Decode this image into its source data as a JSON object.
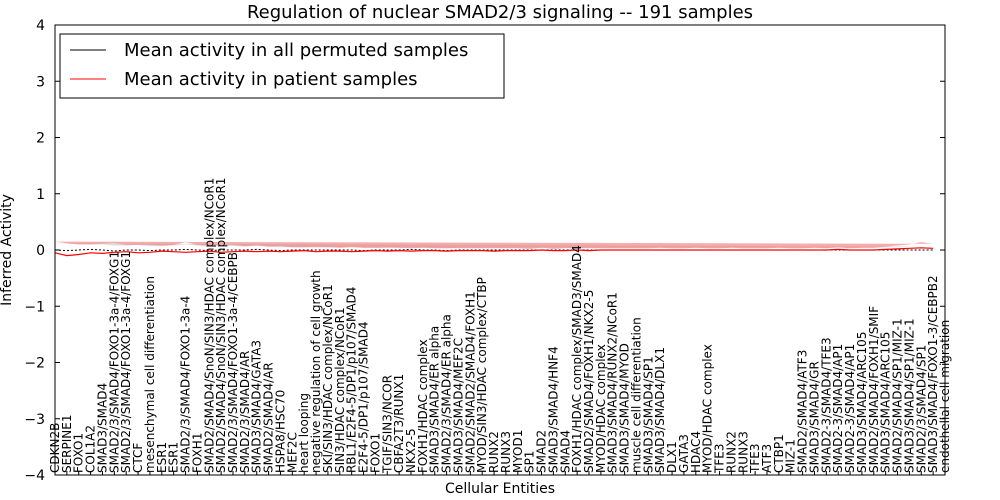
{
  "chart_data": {
    "type": "line",
    "title": "Regulation of nuclear SMAD2/3 signaling -- 191 samples",
    "xlabel": "Cellular Entities",
    "ylabel": "Inferred Activity",
    "ylim": [
      -4,
      4
    ],
    "yticks": [
      "4",
      "3",
      "2",
      "1",
      "0",
      "−1",
      "−2",
      "−3",
      "−4"
    ],
    "ytick_values": [
      4,
      3,
      2,
      1,
      0,
      -1,
      -2,
      -3,
      -4
    ],
    "legend_placement": "top-left",
    "colors": {
      "permuted": "#000000",
      "patient": "#ff0000",
      "band_patient": "#f08080",
      "band_permuted": "#bbbbbb"
    },
    "series": [
      {
        "name": "Mean activity in all permuted samples",
        "color": "#000000"
      },
      {
        "name": "Mean activity in patient samples",
        "color": "#ff0000"
      }
    ],
    "categories": [
      "CDKN2B",
      "SERPINE1",
      "FOXO1",
      "COL1A2",
      "SMAD3/SMAD4",
      "SMAD2/3/SMAD4/FOXO1-3a-4/FOXG1",
      "SMAD2/3/SMAD4/FOXO1-3a-4/FOXG1",
      "CTCF",
      "mesenchymal cell differentiation",
      "ESR1",
      "ESR1",
      "SMAD2/3/SMAD4/FOXO1-3a-4",
      "FOXH1",
      "SMAD2/SMAD4/SnoN/SIN3/HDAC complex/NCoR1",
      "SMAD2/SMAD4/SnoN/SIN3/HDAC complex/NCoR1",
      "SMAD2/3/SMAD4/FOXO1-3a-4/CEBPB",
      "SMAD2/3/SMAD4/AR",
      "SMAD3/SMAD4/GATA3",
      "SMAD2/SMAD4/AR",
      "HSPA8/HSC70",
      "MEF2C",
      "heart looping",
      "negative regulation of cell growth",
      "SKI/SIN3/HDAC complex/NCoR1",
      "SIN3/HDAC complex/NCoR1",
      "RBL1/E2F4-5/DP1/p107/SMAD4",
      "E2F4-5/DP1/p107/SMAD4",
      "FOXO1",
      "TGIF/SIN3/NCOR",
      "CBFA2T3/RUNX1",
      "NKX2-5",
      "FOXH1/HDAC complex",
      "SMAD3/SMAD4/ER alpha",
      "SMAD2/3/SMAD4/ER alpha",
      "SMAD3/SMAD4/MEF2C",
      "SMAD2/SMAD2/SMAD4/FOXH1",
      "MYOD/SIN3/HDAC complex/CTBP",
      "RUNX2",
      "RUNX3",
      "MYOD1",
      "SP1",
      "SMAD2",
      "SMAD3/SMAD4/HNF4",
      "SMAD4",
      "FOXH1/HDAC complex/SMAD3/SMAD4",
      "SMAD2/SMAD4/FOXH1/NKX2-5",
      "MYOD/HDAC complex",
      "SMAD3/SMAD4/RUNX2/NCoR1",
      "SMAD3/SMAD4/MYOD",
      "muscle cell differentiation",
      "SMAD3/SMAD4/SP1",
      "SMAD3/SMAD4/DLX1",
      "DLX1",
      "GATA3",
      "HDAC4",
      "MYOD/HDAC complex",
      "TFE3",
      "RUNX2",
      "RUNX3",
      "TFE3",
      "ATF3",
      "CTBP1",
      "MIZ-1",
      "SMAD2/SMAD4/ATF3",
      "SMAD3/SMAD4/GR",
      "SMAD2-3/SMAD4/TFE3",
      "SMAD2-3/SMAD4/AP1",
      "SMAD2-3/SMAD4/AP1",
      "SMAD3/SMAD4/ARC105",
      "SMAD2/SMAD4/FOXH1/SMIF",
      "SMAD3/SMAD4/ARC105",
      "SMAD2/SMAD4/SP1/MIZ-1",
      "SMAD3/SMAD4/SP1/MIZ-1",
      "SMAD2/3/SMAD4/SP1",
      "SMAD3/SMAD4/FOXO1-3/CEBPB2",
      "endothelial cell migration"
    ],
    "permuted_mean": [
      0.0,
      -0.01,
      0.0,
      0.01,
      0.0,
      -0.02,
      0.0,
      0.0,
      -0.01,
      0.0,
      0.0,
      0.01,
      0.0,
      -0.01,
      0.0,
      0.0,
      0.0,
      0.01,
      0.0,
      -0.01,
      0.0,
      0.0,
      0.0,
      0.0,
      0.0,
      0.0,
      -0.01,
      0.0,
      0.0,
      0.0,
      0.01,
      0.0,
      0.0,
      -0.01,
      0.0,
      0.0,
      0.0,
      0.0,
      0.0,
      0.0,
      0.0,
      0.0,
      0.0,
      0.0,
      0.0,
      0.0,
      0.0,
      0.0,
      0.0,
      0.0,
      0.0,
      0.0,
      0.0,
      0.0,
      0.0,
      0.0,
      0.0,
      0.0,
      0.0,
      0.0,
      0.0,
      0.0,
      0.0,
      0.0,
      0.0,
      0.0,
      0.0,
      0.0,
      0.0,
      0.0,
      0.0,
      0.0,
      0.0,
      0.0,
      0.0
    ],
    "patient_mean": [
      -0.05,
      -0.1,
      -0.08,
      -0.05,
      -0.06,
      -0.04,
      -0.03,
      -0.05,
      -0.04,
      -0.02,
      -0.03,
      -0.04,
      -0.03,
      -0.02,
      -0.04,
      -0.03,
      -0.02,
      -0.03,
      -0.02,
      -0.03,
      -0.02,
      -0.01,
      -0.03,
      -0.02,
      -0.02,
      -0.03,
      -0.02,
      -0.01,
      -0.02,
      -0.01,
      -0.02,
      -0.01,
      -0.01,
      -0.02,
      -0.01,
      -0.01,
      -0.01,
      -0.02,
      -0.01,
      -0.01,
      -0.01,
      0.0,
      -0.01,
      -0.01,
      0.0,
      -0.01,
      0.0,
      0.0,
      0.0,
      0.0,
      0.0,
      0.0,
      0.0,
      0.0,
      0.0,
      0.0,
      0.0,
      0.0,
      0.0,
      0.0,
      0.0,
      0.0,
      0.0,
      0.0,
      0.0,
      0.0,
      0.01,
      0.0,
      0.0,
      0.0,
      0.01,
      0.02,
      0.03,
      0.04,
      0.03
    ],
    "patient_band": [
      0.2,
      0.22,
      0.18,
      0.15,
      0.17,
      0.16,
      0.12,
      0.14,
      0.13,
      0.1,
      0.12,
      0.18,
      0.12,
      0.1,
      0.13,
      0.12,
      0.09,
      0.11,
      0.08,
      0.1,
      0.07,
      0.06,
      0.08,
      0.07,
      0.06,
      0.08,
      0.06,
      0.05,
      0.06,
      0.05,
      0.05,
      0.05,
      0.04,
      0.05,
      0.04,
      0.04,
      0.04,
      0.05,
      0.04,
      0.04,
      0.03,
      0.04,
      0.03,
      0.04,
      0.03,
      0.04,
      0.03,
      0.03,
      0.03,
      0.03,
      0.03,
      0.04,
      0.03,
      0.03,
      0.04,
      0.03,
      0.03,
      0.04,
      0.03,
      0.03,
      0.03,
      0.04,
      0.03,
      0.03,
      0.04,
      0.03,
      0.04,
      0.03,
      0.04,
      0.04,
      0.05,
      0.06,
      0.07,
      0.1,
      0.08
    ],
    "permuted_band": [
      0.12,
      0.12,
      0.1,
      0.09,
      0.1,
      0.1,
      0.08,
      0.09,
      0.08,
      0.07,
      0.08,
      0.09,
      0.08,
      0.07,
      0.08,
      0.07,
      0.06,
      0.07,
      0.06,
      0.06,
      0.05,
      0.05,
      0.06,
      0.05,
      0.05,
      0.06,
      0.05,
      0.04,
      0.05,
      0.04,
      0.04,
      0.04,
      0.04,
      0.04,
      0.04,
      0.04,
      0.04,
      0.04,
      0.04,
      0.04,
      0.04,
      0.04,
      0.04,
      0.04,
      0.04,
      0.04,
      0.04,
      0.04,
      0.04,
      0.04,
      0.04,
      0.04,
      0.04,
      0.04,
      0.04,
      0.04,
      0.04,
      0.04,
      0.04,
      0.04,
      0.04,
      0.04,
      0.04,
      0.04,
      0.04,
      0.04,
      0.04,
      0.04,
      0.04,
      0.04,
      0.05,
      0.05,
      0.06,
      0.06,
      0.06
    ]
  }
}
